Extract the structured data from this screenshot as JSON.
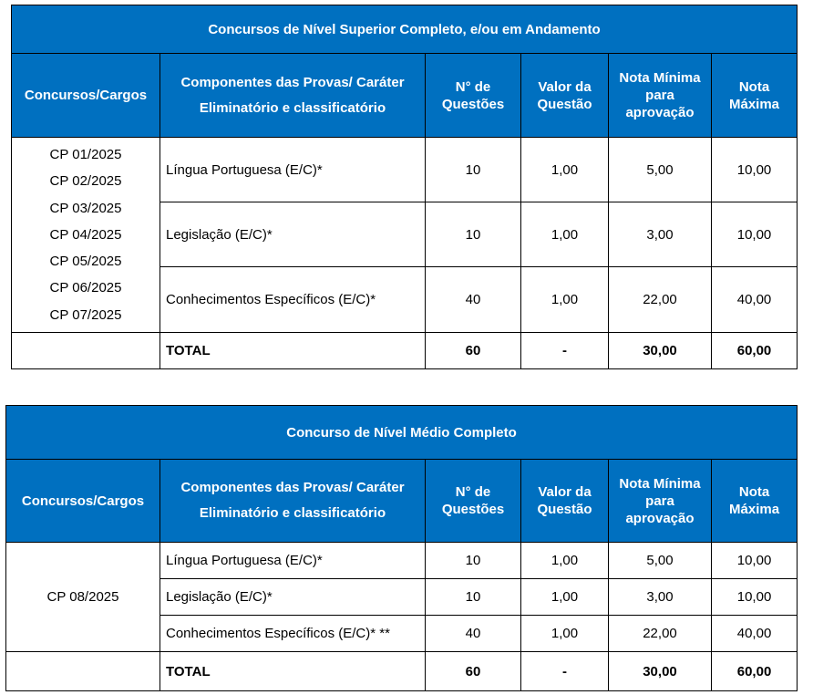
{
  "headers": {
    "cargos": "Concursos/Cargos",
    "componentes_l1": "Componentes das Provas/ Caráter",
    "componentes_l2": "Eliminatório e classificatório",
    "questoes": "N° de Questões",
    "valor": "Valor da Questão",
    "nota_minima": "Nota Mínima para aprovação",
    "nota_maxima": "Nota Máxima"
  },
  "theme": {
    "header_bg": "#0070C0"
  },
  "tables": [
    {
      "title": "Concursos de Nível Superior Completo, e/ou em Andamento",
      "cargos": [
        "CP 01/2025",
        "CP 02/2025",
        "CP 03/2025",
        "CP 04/2025",
        "CP 05/2025",
        "CP 06/2025",
        "CP 07/2025"
      ],
      "rows": [
        {
          "componente": "Língua Portuguesa (E/C)*",
          "questoes": "10",
          "valor": "1,00",
          "minima": "5,00",
          "maxima": "10,00"
        },
        {
          "componente": "Legislação (E/C)*",
          "questoes": "10",
          "valor": "1,00",
          "minima": "3,00",
          "maxima": "10,00"
        },
        {
          "componente": "Conhecimentos Específicos (E/C)*",
          "questoes": "40",
          "valor": "1,00",
          "minima": "22,00",
          "maxima": "40,00"
        }
      ],
      "total": {
        "label": "TOTAL",
        "questoes": "60",
        "valor": "-",
        "minima": "30,00",
        "maxima": "60,00"
      }
    },
    {
      "title": "Concurso de Nível Médio Completo",
      "cargos": [
        "CP 08/2025"
      ],
      "rows": [
        {
          "componente": "Língua Portuguesa (E/C)*",
          "questoes": "10",
          "valor": "1,00",
          "minima": "5,00",
          "maxima": "10,00"
        },
        {
          "componente": "Legislação (E/C)*",
          "questoes": "10",
          "valor": "1,00",
          "minima": "3,00",
          "maxima": "10,00"
        },
        {
          "componente": "Conhecimentos Específicos (E/C)* **",
          "questoes": "40",
          "valor": "1,00",
          "minima": "22,00",
          "maxima": "40,00"
        }
      ],
      "total": {
        "label": "TOTAL",
        "questoes": "60",
        "valor": "-",
        "minima": "30,00",
        "maxima": "60,00"
      }
    }
  ]
}
